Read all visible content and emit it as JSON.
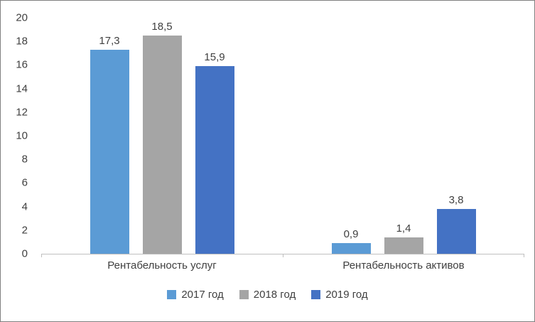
{
  "chart_data": {
    "type": "bar",
    "title": "",
    "xlabel": "",
    "ylabel": "",
    "categories": [
      "Рентабельность услуг",
      "Рентабельность активов"
    ],
    "series": [
      {
        "name": "2017 год",
        "color": "#5B9BD5",
        "values": [
          17.3,
          0.9
        ],
        "labels": [
          "17,3",
          "0,9"
        ]
      },
      {
        "name": "2018 год",
        "color": "#A5A5A5",
        "values": [
          18.5,
          1.4
        ],
        "labels": [
          "18,5",
          "1,4"
        ]
      },
      {
        "name": "2019 год",
        "color": "#4472C4",
        "values": [
          15.9,
          3.8
        ],
        "labels": [
          "15,9",
          "3,8"
        ]
      }
    ],
    "ylim": [
      0,
      20
    ],
    "ytick_step": 2,
    "grid": false,
    "legend_position": "bottom",
    "axis_text_color": "#404040",
    "axis_line_color": "#BFBFBF"
  }
}
